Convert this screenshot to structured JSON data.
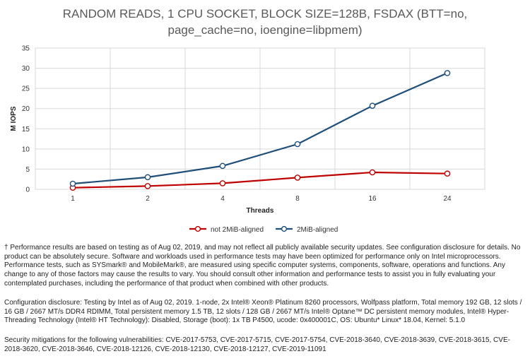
{
  "chart_data": {
    "type": "line",
    "title_lines": [
      "RANDOM READS, 1 CPU SOCKET, BLOCK SIZE=128B, FSDAX (BTT=no,",
      "page_cache=no, ioengine=libpmem)"
    ],
    "categories": [
      "1",
      "2",
      "4",
      "8",
      "16",
      "24"
    ],
    "xlabel": "Threads",
    "ylabel": "M IOPS",
    "ylim": [
      0,
      35
    ],
    "yticks": [
      0,
      5,
      10,
      15,
      20,
      25,
      30,
      35
    ],
    "grid": true,
    "legend_position": "bottom",
    "series": [
      {
        "name": "not 2MiB-aligned",
        "color": "#c00000",
        "values": [
          0.4,
          0.8,
          1.5,
          2.9,
          4.2,
          3.9
        ]
      },
      {
        "name": "2MiB-aligned",
        "color": "#1f4e79",
        "values": [
          1.4,
          3.0,
          5.8,
          11.2,
          20.7,
          28.8
        ]
      }
    ]
  },
  "notes": {
    "performance": "† Performance results are based on testing as of Aug 02, 2019, and may not reflect all publicly available security updates. See configuration disclosure for details. No product can be absolutely secure. Software and workloads used in performance tests may have been optimized for performance only on Intel microprocessors. Performance tests, such as SYSmark® and MobileMark®, are measured using specific computer systems, components, software, operations and functions. Any change to any of those factors may cause the results to vary. You should consult other information and performance tests to assist you in fully evaluating your contemplated purchases, including the performance of that product when combined with other products.",
    "configuration": "Configuration disclosure: Testing by Intel as of Aug 02, 2019. 1-node, 2x Intel® Xeon® Platinum 8260 processors, Wolfpass platform, Total memory 192 GB, 12 slots / 16 GB / 2667 MT/s DDR4 RDIMM, Total persistent memory 1.5 TB, 12 slots / 128 GB / 2667 MT/s Intel® Optane™ DC persistent memory modules, Intel® Hyper-Threading Technology (Intel® HT Technology): Disabled, Storage (boot): 1x TB P4500, ucode: 0x400001C, OS: Ubuntu* Linux* 18.04, Kernel: 5.1.0",
    "security": "Security mitigations for the following vulnerabilities: CVE-2017-5753, CVE-2017-5715, CVE-2017-5754, CVE-2018-3640, CVE-2018-3639, CVE-2018-3615, CVE-2018-3620, CVE-2018-3646, CVE-2018-12126, CVE-2018-12130, CVE-2018-12127, CVE-2019-11091"
  }
}
